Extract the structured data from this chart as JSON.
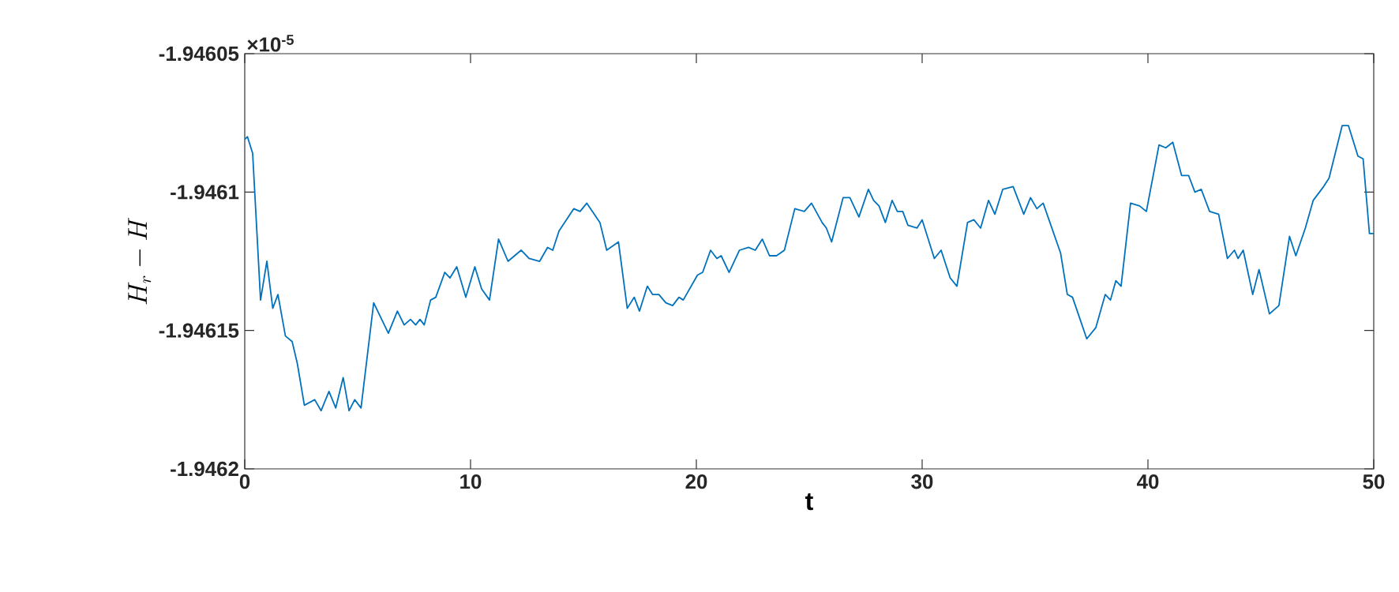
{
  "chart_data": {
    "type": "line",
    "xlabel": "t",
    "ylabel": "H_r - H",
    "annotations": [
      "×10$^{-5}$"
    ],
    "xlim": [
      0,
      50
    ],
    "xticks": [
      0,
      10,
      20,
      30,
      40,
      50
    ],
    "ylim": [
      -1.9462,
      -1.94605
    ],
    "yticks": [
      -1.9462,
      -1.94615,
      -1.9461,
      -1.94605
    ],
    "grid": false,
    "marker": "none",
    "line_style": "solid",
    "x": [
      0,
      0.12,
      0.35,
      0.7,
      0.98,
      1.24,
      1.47,
      1.8,
      2.1,
      2.33,
      2.64,
      3.1,
      3.38,
      3.73,
      4.03,
      4.36,
      4.62,
      4.87,
      5.15,
      5.71,
      6.36,
      6.76,
      7.06,
      7.34,
      7.57,
      7.76,
      7.95,
      8.23,
      8.46,
      8.86,
      9.09,
      9.39,
      9.79,
      10.19,
      10.49,
      10.84,
      11.24,
      11.66,
      12.24,
      12.59,
      13.06,
      13.41,
      13.64,
      13.92,
      14.57,
      14.85,
      15.15,
      15.73,
      16.03,
      16.55,
      16.94,
      17.25,
      17.48,
      17.83,
      18.06,
      18.34,
      18.65,
      18.95,
      19.23,
      19.42,
      20.05,
      20.28,
      20.63,
      20.91,
      21.1,
      21.45,
      21.91,
      22.31,
      22.61,
      22.92,
      23.24,
      23.55,
      23.9,
      24.36,
      24.78,
      25.1,
      25.57,
      25.76,
      25.99,
      26.5,
      26.8,
      27.2,
      27.62,
      27.85,
      28.09,
      28.37,
      28.67,
      28.9,
      29.14,
      29.37,
      29.77,
      30.0,
      30.54,
      30.84,
      31.24,
      31.54,
      32.01,
      32.29,
      32.59,
      32.94,
      33.22,
      33.57,
      34.03,
      34.5,
      34.8,
      35.08,
      35.36,
      36.13,
      36.43,
      36.66,
      37.29,
      37.69,
      38.11,
      38.34,
      38.58,
      38.81,
      39.23,
      39.63,
      39.93,
      40.49,
      40.79,
      41.1,
      41.49,
      41.8,
      42.08,
      42.36,
      42.73,
      43.13,
      43.52,
      43.83,
      43.99,
      44.22,
      44.64,
      44.92,
      45.38,
      45.8,
      46.27,
      46.55,
      46.97,
      47.32,
      47.78,
      48.02,
      48.6,
      48.88,
      49.3,
      49.53,
      49.81,
      50.0
    ],
    "series": [
      {
        "color": "#0072bd",
        "values": [
          -1.946081,
          -1.94608,
          -1.946086,
          -1.946139,
          -1.946125,
          -1.946142,
          -1.946137,
          -1.946152,
          -1.946154,
          -1.946162,
          -1.946177,
          -1.946175,
          -1.946179,
          -1.946172,
          -1.946178,
          -1.946167,
          -1.946179,
          -1.946175,
          -1.946178,
          -1.94614,
          -1.946151,
          -1.946143,
          -1.946148,
          -1.946146,
          -1.946148,
          -1.946146,
          -1.946148,
          -1.946139,
          -1.946138,
          -1.946129,
          -1.946131,
          -1.946127,
          -1.946138,
          -1.946127,
          -1.946135,
          -1.946139,
          -1.946117,
          -1.946125,
          -1.946121,
          -1.946124,
          -1.946125,
          -1.94612,
          -1.946121,
          -1.946114,
          -1.946106,
          -1.946107,
          -1.946104,
          -1.946111,
          -1.946121,
          -1.946118,
          -1.946142,
          -1.946138,
          -1.946143,
          -1.946134,
          -1.946137,
          -1.946137,
          -1.94614,
          -1.946141,
          -1.946138,
          -1.946139,
          -1.94613,
          -1.946129,
          -1.946121,
          -1.946124,
          -1.946123,
          -1.946129,
          -1.946121,
          -1.94612,
          -1.946121,
          -1.946117,
          -1.946123,
          -1.946123,
          -1.946121,
          -1.946106,
          -1.946107,
          -1.946104,
          -1.946111,
          -1.946113,
          -1.946118,
          -1.946102,
          -1.946102,
          -1.946109,
          -1.946099,
          -1.946103,
          -1.946105,
          -1.946111,
          -1.946103,
          -1.946107,
          -1.946107,
          -1.946112,
          -1.946113,
          -1.94611,
          -1.946124,
          -1.946121,
          -1.946131,
          -1.946134,
          -1.946111,
          -1.94611,
          -1.946113,
          -1.946103,
          -1.946108,
          -1.946099,
          -1.946098,
          -1.946108,
          -1.946102,
          -1.946106,
          -1.946104,
          -1.946122,
          -1.946137,
          -1.946138,
          -1.946153,
          -1.946149,
          -1.946137,
          -1.946139,
          -1.946132,
          -1.946134,
          -1.946104,
          -1.946105,
          -1.946107,
          -1.946083,
          -1.946084,
          -1.946082,
          -1.946094,
          -1.946094,
          -1.9461,
          -1.946099,
          -1.946107,
          -1.946108,
          -1.946124,
          -1.946121,
          -1.946124,
          -1.946121,
          -1.946137,
          -1.946128,
          -1.946144,
          -1.946141,
          -1.946116,
          -1.946123,
          -1.946113,
          -1.946103,
          -1.946098,
          -1.946095,
          -1.946076,
          -1.946076,
          -1.946087,
          -1.946088,
          -1.946115,
          -1.946115
        ]
      }
    ]
  }
}
